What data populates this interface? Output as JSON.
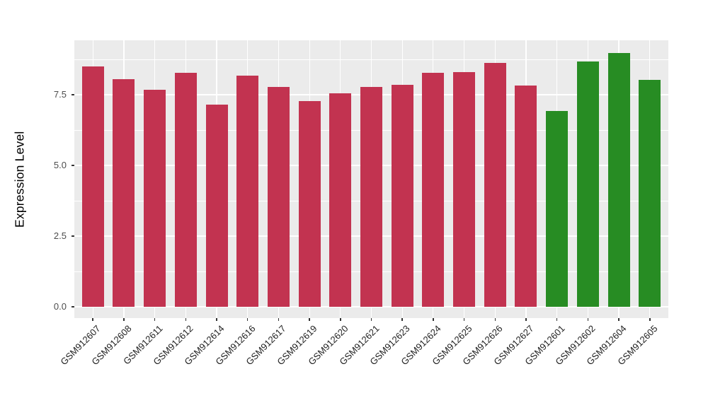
{
  "figure": {
    "background_color": "#FFFFFF"
  },
  "chart_data": {
    "type": "bar",
    "title": "",
    "xlabel": "",
    "ylabel": "Expression Level",
    "legend_position": "none",
    "grid": true,
    "panel_background_color": "#EBEBEB",
    "grid_color": "#FFFFFF",
    "categories": [
      "GSM912607",
      "GSM912608",
      "GSM912611",
      "GSM912612",
      "GSM912614",
      "GSM912616",
      "GSM912617",
      "GSM912619",
      "GSM912620",
      "GSM912621",
      "GSM912623",
      "GSM912624",
      "GSM912625",
      "GSM912626",
      "GSM912627",
      "GSM912601",
      "GSM912602",
      "GSM912604",
      "GSM912605"
    ],
    "values": [
      8.5,
      8.05,
      7.68,
      8.28,
      7.15,
      8.18,
      7.78,
      7.27,
      7.55,
      7.78,
      7.85,
      8.27,
      8.29,
      8.63,
      7.83,
      6.93,
      8.68,
      8.98,
      8.03
    ],
    "groups": [
      "group-a",
      "group-a",
      "group-a",
      "group-a",
      "group-a",
      "group-a",
      "group-a",
      "group-a",
      "group-a",
      "group-a",
      "group-a",
      "group-a",
      "group-a",
      "group-a",
      "group-a",
      "group-b",
      "group-b",
      "group-b",
      "group-b"
    ],
    "group_colors": {
      "group-a": "#C23350",
      "group-b": "#278C23"
    },
    "yticks": [
      0,
      2.5,
      5,
      7.5
    ],
    "ytick_labels": [
      "0.0",
      "2.5",
      "5.0",
      "7.5"
    ],
    "yticks_minor": [
      1.25,
      3.75,
      6.25,
      8.75
    ],
    "ylim": [
      -0.4,
      9.425
    ],
    "xtick_angle_deg": 45
  }
}
